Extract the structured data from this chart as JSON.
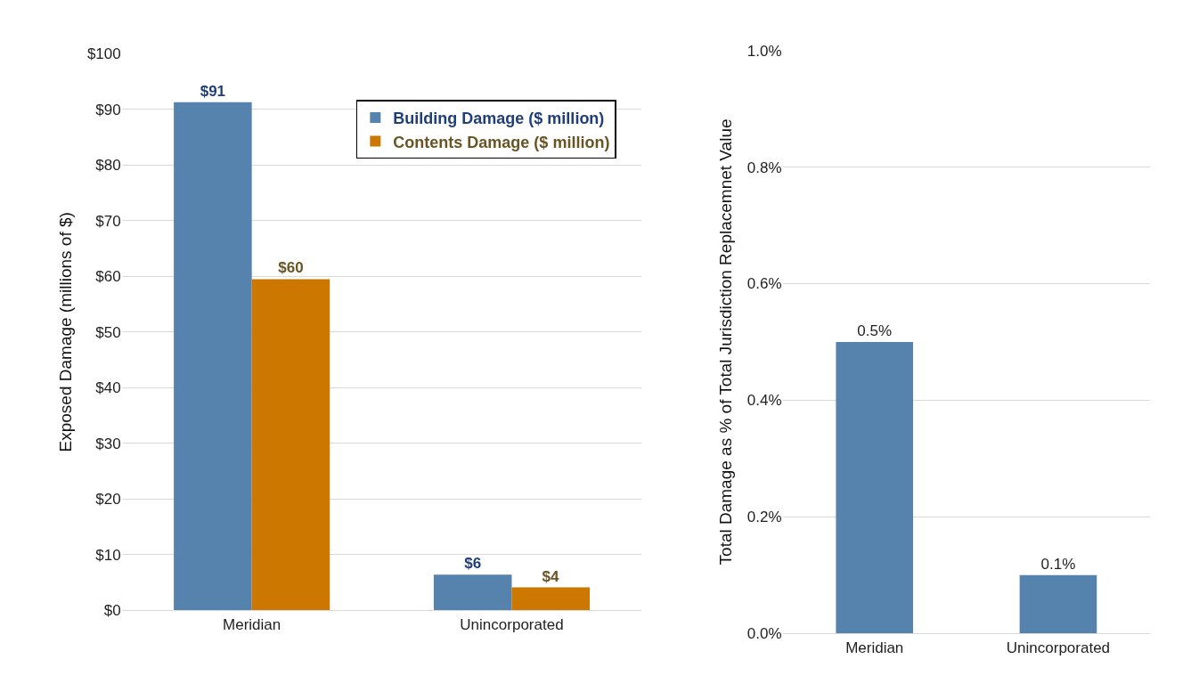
{
  "chart_data": [
    {
      "type": "bar",
      "categories": [
        "Meridian",
        "Unincorporated"
      ],
      "ylabel": "Exposed Damage (millions of $)",
      "ylim": [
        0,
        100
      ],
      "yticks": [
        {
          "value": 0,
          "label": "$0"
        },
        {
          "value": 10,
          "label": "$10"
        },
        {
          "value": 20,
          "label": "$20"
        },
        {
          "value": 30,
          "label": "$30"
        },
        {
          "value": 40,
          "label": "$40"
        },
        {
          "value": 50,
          "label": "$50"
        },
        {
          "value": 60,
          "label": "$60"
        },
        {
          "value": 70,
          "label": "$70"
        },
        {
          "value": 80,
          "label": "$80"
        },
        {
          "value": 90,
          "label": "$90"
        },
        {
          "value": 100,
          "label": "$100"
        }
      ],
      "grid": "y",
      "legend": "top right",
      "series": [
        {
          "name": "Building Damage ($ million)",
          "color": "#5682ae",
          "values": [
            91.3,
            6.4
          ],
          "value_labels": [
            "$91",
            "$6"
          ]
        },
        {
          "name": "Contents Damage ($ million)",
          "color": "#cb7700",
          "values": [
            59.5,
            4.1
          ],
          "value_labels": [
            "$60",
            "$4"
          ]
        }
      ]
    },
    {
      "type": "bar",
      "categories": [
        "Meridian",
        "Unincorporated"
      ],
      "ylabel": "Total Damage as % of Total Jurisdiction Replacemnet Value",
      "ylim": [
        0,
        1
      ],
      "yticks": [
        {
          "value": 0,
          "label": "0.0%"
        },
        {
          "value": 0.2,
          "label": "0.2%"
        },
        {
          "value": 0.4,
          "label": "0.4%"
        },
        {
          "value": 0.6,
          "label": "0.6%"
        },
        {
          "value": 0.8,
          "label": "0.8%"
        },
        {
          "value": 1,
          "label": "1.0%"
        }
      ],
      "grid": "y",
      "series": [
        {
          "color": "#5682ae",
          "values": [
            0.5,
            0.1
          ],
          "value_labels": [
            "0.5%",
            "0.1%"
          ]
        }
      ]
    }
  ]
}
